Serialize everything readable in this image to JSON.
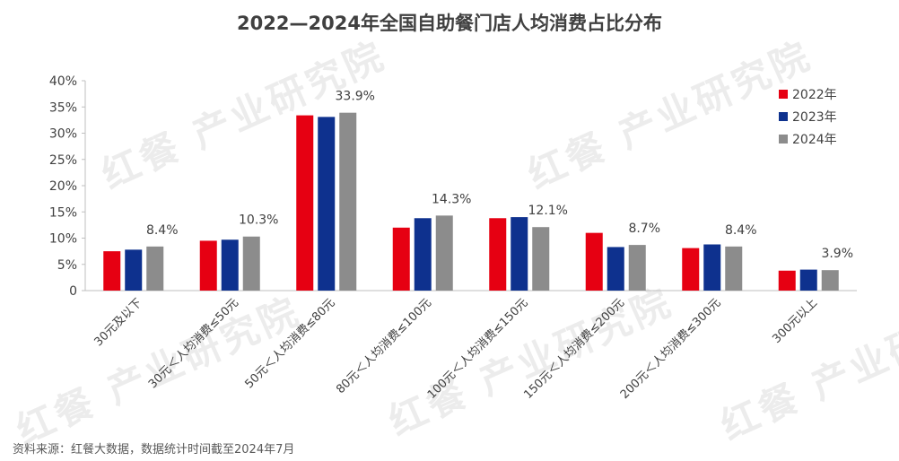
{
  "title": "2022—2024年全国自助餐门店人均消费占比分布",
  "watermark": "红餐 产业研究院",
  "source": "资料来源：红餐大数据，数据统计时间截至2024年7月",
  "colors": {
    "2022年": "#e60012",
    "2023年": "#0e318e",
    "2024年": "#8c8c8c"
  },
  "chart_data": {
    "type": "bar",
    "title": "2022—2024年全国自助餐门店人均消费占比分布",
    "categories": [
      "30元及以下",
      "30元＜人均消费≤50元",
      "50元＜人均消费≤80元",
      "80元＜人均消费≤100元",
      "100元＜人均消费≤150元",
      "150元＜人均消费≤200元",
      "200元＜人均消费≤300元",
      "300元以上"
    ],
    "series": [
      {
        "name": "2022年",
        "values": [
          7.5,
          9.5,
          33.4,
          12.0,
          13.8,
          11.0,
          8.1,
          3.8
        ]
      },
      {
        "name": "2023年",
        "values": [
          7.8,
          9.7,
          33.1,
          13.8,
          14.0,
          8.3,
          8.8,
          4.0
        ]
      },
      {
        "name": "2024年",
        "values": [
          8.4,
          10.3,
          33.9,
          14.3,
          12.1,
          8.7,
          8.4,
          3.9
        ]
      }
    ],
    "data_labels": [
      "8.4%",
      "10.3%",
      "33.9%",
      "14.3%",
      "12.1%",
      "8.7%",
      "8.4%",
      "3.9%"
    ],
    "yticks": [
      "0",
      "5%",
      "10%",
      "15%",
      "20%",
      "25%",
      "30%",
      "35%",
      "40%"
    ],
    "ylim": [
      0,
      40
    ],
    "legend_position": "top-right",
    "grid": false
  }
}
